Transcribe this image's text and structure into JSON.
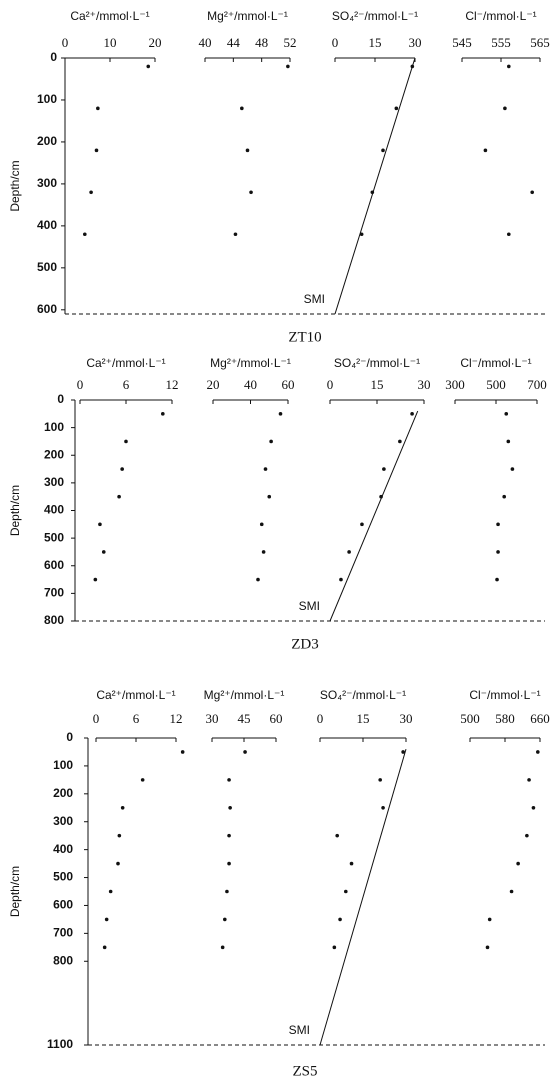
{
  "chart_data": [
    {
      "type": "scatter",
      "title": "ZT10",
      "ylabel": "Depth/cm",
      "ylim": [
        0,
        610
      ],
      "yticks": [
        0,
        100,
        200,
        300,
        400,
        500,
        600
      ],
      "depths": [
        20,
        120,
        220,
        320,
        420
      ],
      "color": "#111111",
      "subplots": [
        {
          "xlabel": "Ca²⁺/mmol·L⁻¹",
          "xlim": [
            0,
            20
          ],
          "xticks": [
            0,
            10,
            20
          ],
          "values": [
            18.5,
            7.3,
            7,
            5.8,
            4.4
          ]
        },
        {
          "xlabel": "Mg²⁺/mmol·L⁻¹",
          "xlim": [
            40,
            52
          ],
          "xticks": [
            40,
            44,
            48,
            52
          ],
          "values": [
            51.7,
            45.2,
            46,
            46.5,
            44.3
          ]
        },
        {
          "xlabel": "SO₄²⁻/mmol·L⁻¹",
          "xlim": [
            0,
            30
          ],
          "xticks": [
            0,
            15,
            30
          ],
          "values": [
            29,
            23,
            18,
            14,
            10
          ]
        },
        {
          "xlabel": "Cl⁻/mmol·L⁻¹",
          "xlim": [
            545,
            565
          ],
          "xticks": [
            545,
            555,
            565
          ],
          "values": [
            557,
            556,
            551,
            563,
            557
          ]
        }
      ],
      "fit_line": {
        "x": [
          30,
          0
        ],
        "y": [
          0,
          610
        ]
      },
      "fit_label": "SMI"
    },
    {
      "type": "scatter",
      "title": "ZD3",
      "ylabel": "Depth/cm",
      "ylim": [
        0,
        800
      ],
      "yticks": [
        0,
        100,
        200,
        300,
        400,
        500,
        600,
        700,
        800
      ],
      "depths": [
        50,
        150,
        250,
        350,
        450,
        550,
        650
      ],
      "color": "#111111",
      "subplots": [
        {
          "xlabel": "Ca²⁺/mmol·L⁻¹",
          "xlim": [
            0,
            12
          ],
          "xticks": [
            0,
            6,
            12
          ],
          "values": [
            10.8,
            6,
            5.5,
            5.1,
            2.6,
            3.1,
            2
          ]
        },
        {
          "xlabel": "Mg²⁺/mmol·L⁻¹",
          "xlim": [
            20,
            60
          ],
          "xticks": [
            20,
            40,
            60
          ],
          "values": [
            56,
            51,
            48,
            50,
            46,
            47,
            44
          ]
        },
        {
          "xlabel": "SO₄²⁻/mmol·L⁻¹",
          "xlim": [
            0,
            30
          ],
          "xticks": [
            0,
            15,
            30
          ],
          "values": [
            26.2,
            22.3,
            17.2,
            16.3,
            10.2,
            6.1,
            3.5
          ]
        },
        {
          "xlabel": "Cl⁻/mmol·L⁻¹",
          "xlim": [
            300,
            700
          ],
          "xticks": [
            300,
            500,
            700
          ],
          "values": [
            550,
            560,
            580,
            540,
            510,
            510,
            505
          ]
        }
      ],
      "fit_line": {
        "x": [
          28,
          0
        ],
        "y": [
          40,
          800
        ]
      },
      "fit_label": "SMI"
    },
    {
      "type": "scatter",
      "title": "ZS5",
      "ylabel": "Depth/cm",
      "ylim": [
        0,
        1100
      ],
      "yticks": [
        0,
        100,
        200,
        300,
        400,
        500,
        600,
        700,
        800,
        1100
      ],
      "depths": [
        50,
        150,
        250,
        350,
        450,
        550,
        650,
        750
      ],
      "color": "#111111",
      "subplots": [
        {
          "xlabel": "Ca²⁺/mmol·L⁻¹",
          "xlim": [
            0,
            12
          ],
          "xticks": [
            0,
            6,
            12
          ],
          "values": [
            13,
            7,
            4,
            3.5,
            3.3,
            2.2,
            1.6,
            1.3
          ]
        },
        {
          "xlabel": "Mg²⁺/mmol·L⁻¹",
          "xlim": [
            30,
            60
          ],
          "xticks": [
            30,
            45,
            60
          ],
          "values": [
            45.5,
            38,
            38.5,
            38,
            38,
            37,
            36,
            35
          ]
        },
        {
          "xlabel": "SO₄²⁻/mmol·L⁻¹",
          "xlim": [
            0,
            30
          ],
          "xticks": [
            0,
            15,
            30
          ],
          "values": [
            29,
            21,
            22,
            6,
            11,
            9,
            7,
            5
          ]
        },
        {
          "xlabel": "Cl⁻/mmol·L⁻¹",
          "xlim": [
            500,
            660
          ],
          "xticks": [
            500,
            580,
            660
          ],
          "values": [
            655,
            635,
            645,
            630,
            610,
            595,
            545,
            540
          ]
        }
      ],
      "fit_line": {
        "x": [
          30,
          0
        ],
        "y": [
          40,
          1100
        ]
      },
      "fit_label": "SMI"
    }
  ]
}
